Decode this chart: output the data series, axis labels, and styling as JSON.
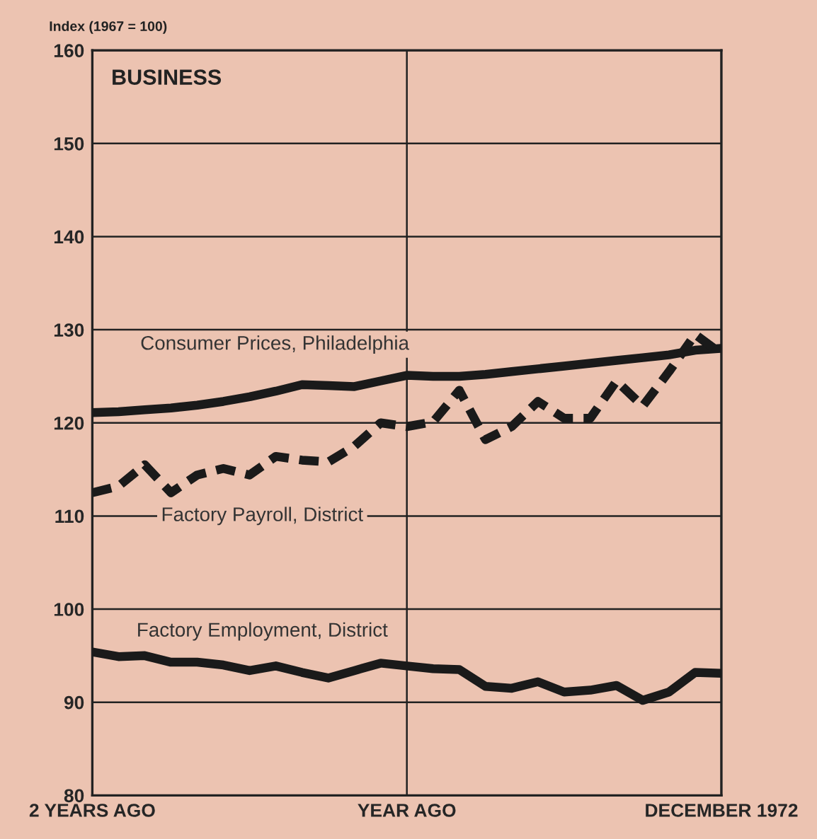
{
  "chart_data": {
    "type": "line",
    "title": "BUSINESS",
    "ylabel": "Index (1967 = 100)",
    "categories": [
      "2 YEARS AGO",
      null,
      null,
      null,
      null,
      null,
      null,
      null,
      null,
      null,
      null,
      null,
      "YEAR AGO",
      null,
      null,
      null,
      null,
      null,
      null,
      null,
      null,
      null,
      null,
      null,
      "DECEMBER 1972"
    ],
    "ylim": [
      80,
      160
    ],
    "yticks": [
      80,
      90,
      100,
      110,
      120,
      130,
      140,
      150,
      160
    ],
    "grid": true,
    "legend": false,
    "marker": "none",
    "series": [
      {
        "name": "Consumer Prices, Philadelphia",
        "color": "#1a1a1a",
        "line_style": "solid",
        "values": [
          121.1,
          121.2,
          121.4,
          121.6,
          121.9,
          122.3,
          122.8,
          123.4,
          124.1,
          124.0,
          123.9,
          124.5,
          125.1,
          125.0,
          125.0,
          125.2,
          125.5,
          125.8,
          126.1,
          126.4,
          126.7,
          127.0,
          127.3,
          127.8,
          128.0
        ]
      },
      {
        "name": "Factory Payroll, District",
        "color": "#1a1a1a",
        "line_style": "dashed",
        "values": [
          112.5,
          113.2,
          115.5,
          112.5,
          114.4,
          115.1,
          114.4,
          116.4,
          116.0,
          115.8,
          117.5,
          120.0,
          119.6,
          120.1,
          123.5,
          118.2,
          119.6,
          122.3,
          120.5,
          120.5,
          124.5,
          121.8,
          125.5,
          129.5,
          127.4
        ]
      },
      {
        "name": "Factory Employment, District",
        "color": "#1a1a1a",
        "line_style": "solid",
        "values": [
          95.4,
          94.9,
          95.0,
          94.3,
          94.3,
          94.0,
          93.4,
          93.9,
          93.2,
          92.6,
          93.4,
          94.2,
          93.9,
          93.6,
          93.5,
          91.7,
          91.5,
          92.2,
          91.1,
          91.3,
          91.8,
          90.2,
          91.1,
          93.2,
          93.1
        ]
      }
    ]
  }
}
